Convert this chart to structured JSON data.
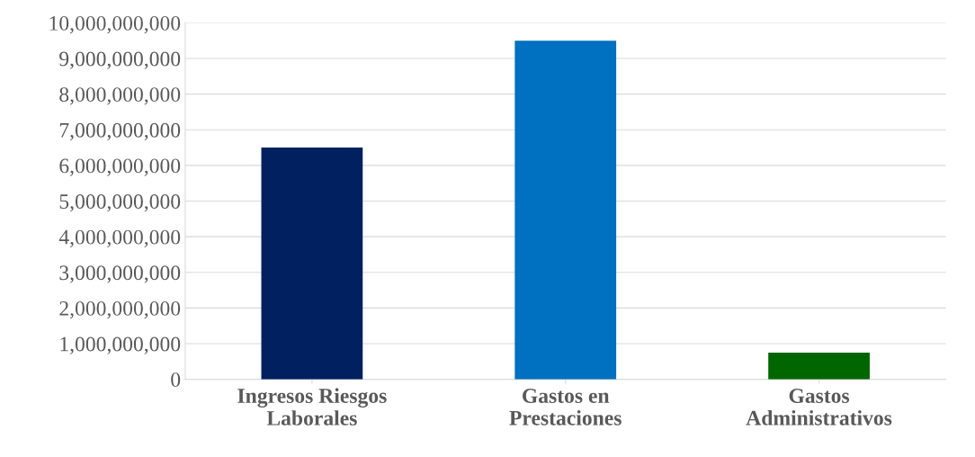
{
  "chart_data": {
    "type": "bar",
    "categories": [
      "Ingresos Riesgos\nLaborales",
      "Gastos en\nPrestaciones",
      "Gastos\nAdministrativos"
    ],
    "values": [
      6500000000,
      9500000000,
      750000000
    ],
    "colors": [
      "#002060",
      "#0070c0",
      "#006600"
    ],
    "ylim": [
      0,
      10000000000
    ],
    "yticks": [
      0,
      {
        "value": 1000000000,
        "label": "1,000,000,000"
      },
      {
        "value": 2000000000,
        "label": "2,000,000,000"
      },
      {
        "value": 3000000000,
        "label": "3,000,000,000"
      },
      {
        "value": 4000000000,
        "label": "4,000,000,000"
      },
      {
        "value": 5000000000,
        "label": "5,000,000,000"
      },
      {
        "value": 6000000000,
        "label": "6,000,000,000"
      },
      {
        "value": 7000000000,
        "label": "7,000,000,000"
      },
      {
        "value": 8000000000,
        "label": "8,000,000,000"
      },
      {
        "value": 9000000000,
        "label": "9,000,000,000"
      },
      {
        "value": 10000000000,
        "label": "10,000,000,000"
      }
    ],
    "grid": "y",
    "legend": false
  }
}
